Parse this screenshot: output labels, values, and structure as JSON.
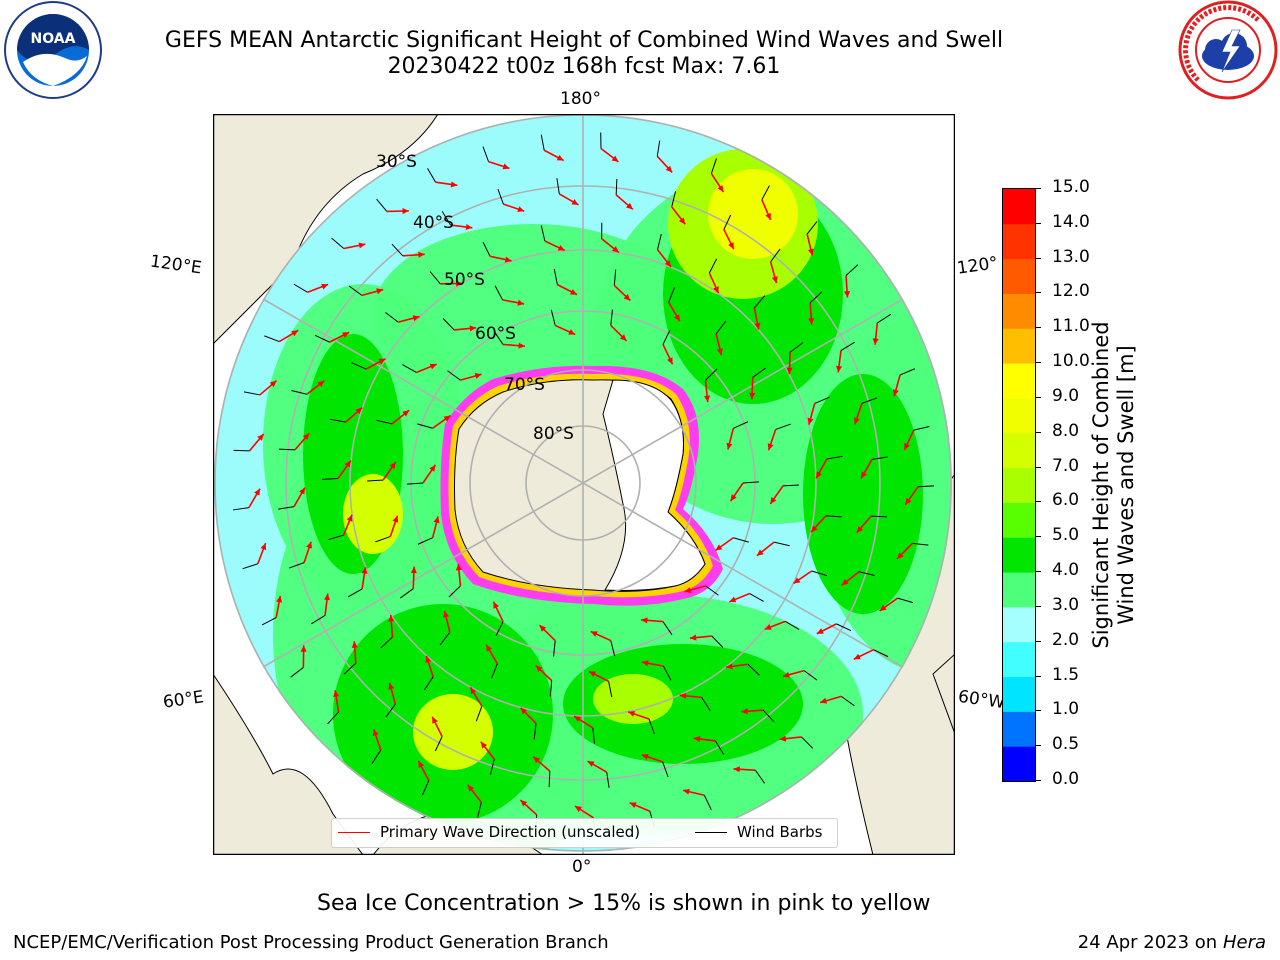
{
  "header": {
    "title_line1": "GEFS MEAN Antarctic Significant Height of Combined Wind Waves and Swell",
    "title_line2": "20230422 t00z 168h fcst   Max: 7.61"
  },
  "logos": {
    "left": "NOAA",
    "left_ring": "NATIONAL OCEANIC AND ATMOSPHERIC ADMINISTRATION · U.S. DEPARTMENT OF COMMERCE",
    "right_ring": "NATIONAL WEATHER SERVICE"
  },
  "map": {
    "projection": "south-polar-stereographic",
    "lon_labels": {
      "top": "180°",
      "bottom": "0°",
      "left_upper": "120°E",
      "left_lower": "60°E",
      "right_upper": "120°",
      "right_lower": "60°W"
    },
    "lat_labels": [
      "30°S",
      "40°S",
      "50°S",
      "60°S",
      "70°S",
      "80°S"
    ],
    "colors": {
      "ocean_bg": "#9cfcfc",
      "land": "#efebdb",
      "ice_edge": "#ff3cf0",
      "antarctica": "#efebdb"
    }
  },
  "legend": {
    "wave_direction": "Primary Wave Direction (unscaled)",
    "wind_barbs": "Wind Barbs",
    "wave_color": "#ff0000",
    "barb_color": "#000000"
  },
  "colorbar": {
    "title_line1": "Significant Height of Combined",
    "title_line2": "Wind Waves and Swell [m]",
    "ticks": [
      "0.0",
      "0.5",
      "1.0",
      "1.5",
      "2.0",
      "3.0",
      "4.0",
      "5.0",
      "6.0",
      "7.0",
      "8.0",
      "9.0",
      "10.0",
      "11.0",
      "12.0",
      "13.0",
      "14.0",
      "15.0"
    ],
    "colors": [
      "#0000ff",
      "#0073ff",
      "#00e5ff",
      "#42ffff",
      "#a6ffff",
      "#4dff7a",
      "#00e600",
      "#57ff00",
      "#a8ff00",
      "#d4ff00",
      "#f0ff00",
      "#ffff00",
      "#ffbf00",
      "#ff8c00",
      "#ff5a00",
      "#ff3200",
      "#ff0000"
    ]
  },
  "note": "Sea Ice Concentration > 15% is shown in pink to yellow",
  "footer": {
    "left": "NCEP/EMC/Verification Post Processing Product Generation Branch",
    "right_date": "24 Apr 2023 on ",
    "right_host": "Hera"
  }
}
